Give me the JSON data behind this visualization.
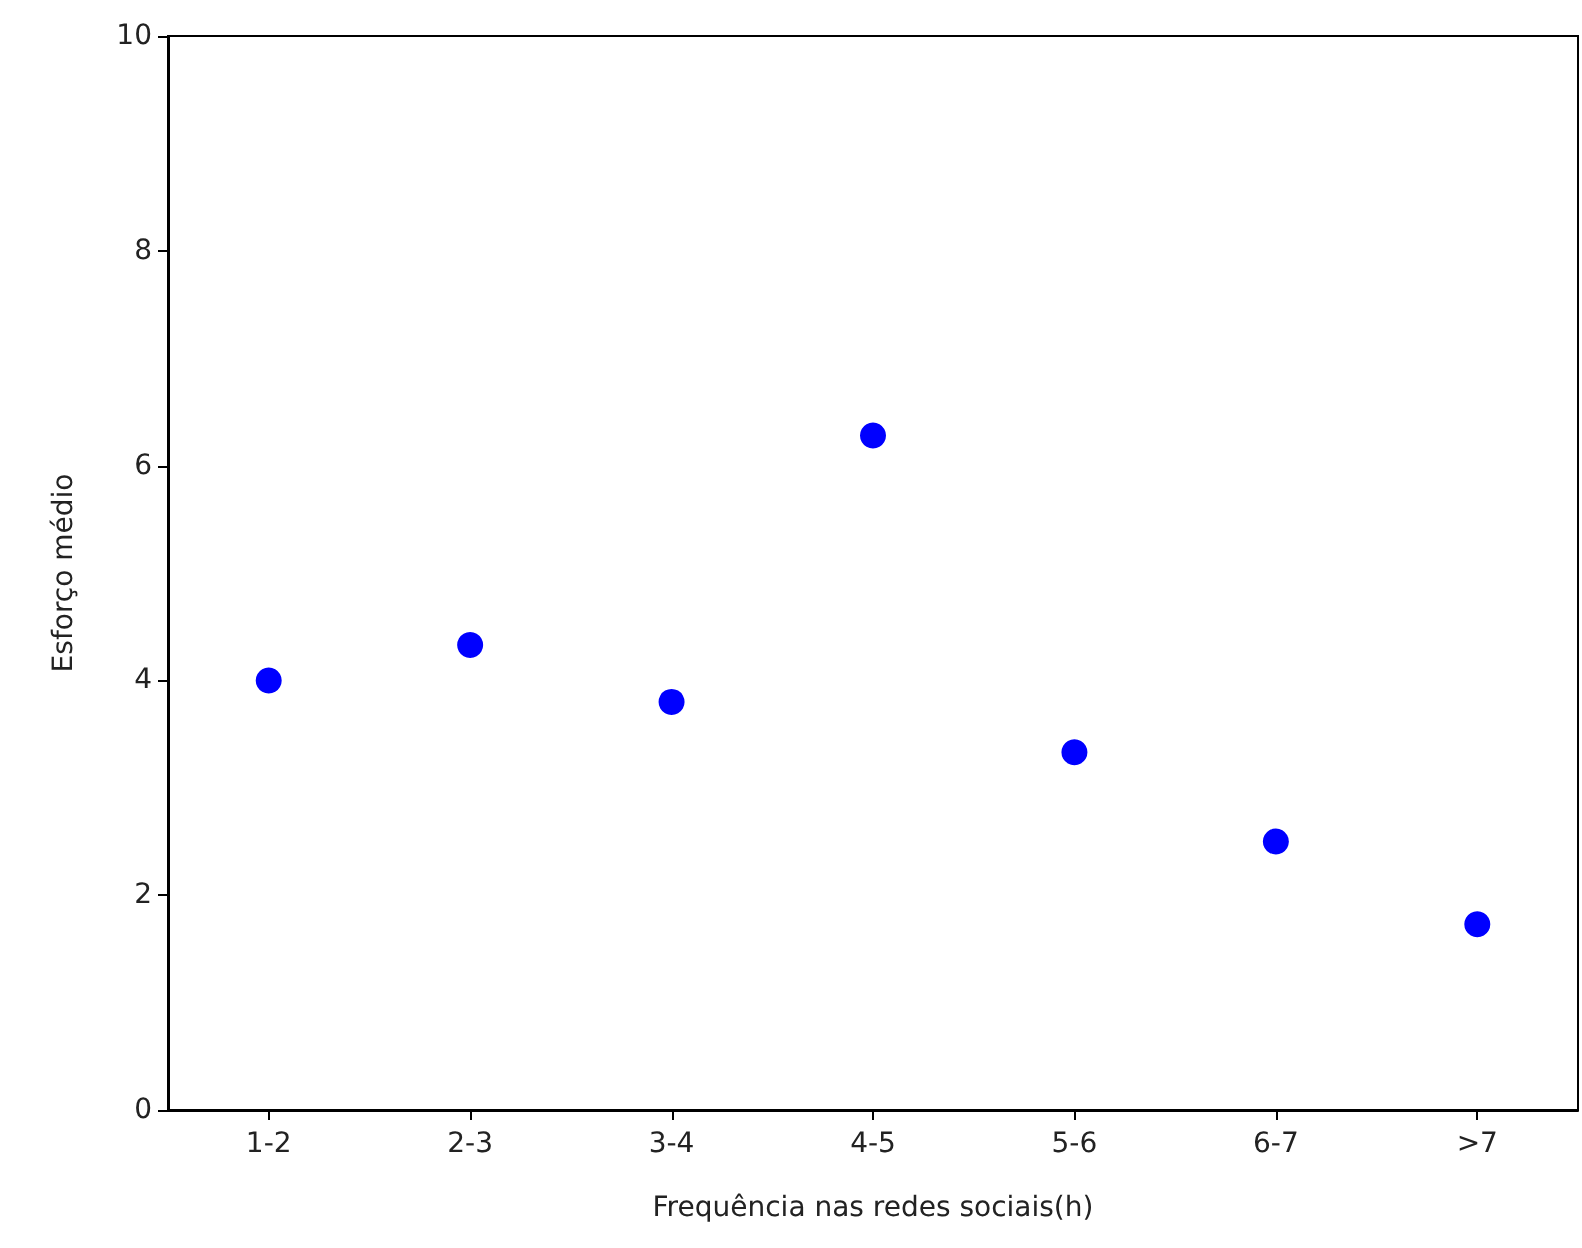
{
  "chart_data": {
    "type": "scatter",
    "xlabel": "Frequência nas redes sociais(h)",
    "ylabel": "Esforço médio",
    "categories": [
      "1-2",
      "2-3",
      "3-4",
      "4-5",
      "5-6",
      "6-7",
      ">7"
    ],
    "series": [
      {
        "color": "#0000ff",
        "values": [
          4.0,
          4.33,
          3.8,
          6.28,
          3.33,
          2.5,
          1.73
        ]
      }
    ],
    "ylim": [
      0,
      10
    ],
    "yticks": [
      0,
      2,
      4,
      6,
      8,
      10
    ],
    "grid": false,
    "marker": "circle"
  }
}
